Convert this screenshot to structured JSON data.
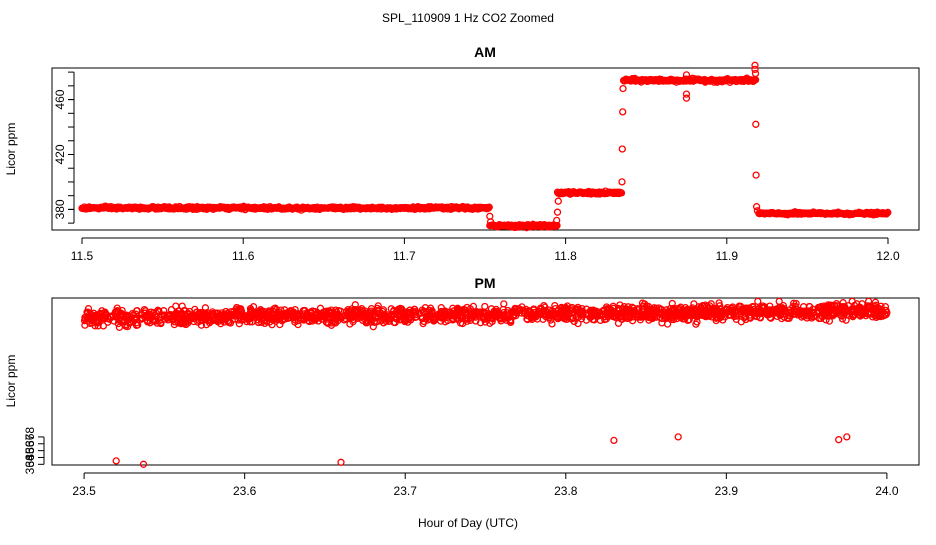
{
  "figure": {
    "title": "SPL_110909  1 Hz CO2 Zoomed",
    "shared_xlabel": "Hour of Day (UTC)"
  },
  "colors": {
    "points": "#ff0000",
    "axes": "#000000",
    "background": "#ffffff"
  },
  "chart_data": [
    {
      "type": "scatter",
      "title": "AM",
      "xlabel": "",
      "ylabel": "Licor ppm",
      "xlim": [
        11.5,
        12.0
      ],
      "ylim": [
        365,
        483
      ],
      "xticks": [
        11.5,
        11.6,
        11.7,
        11.8,
        11.9,
        12.0
      ],
      "xtick_labels": [
        "11.5",
        "11.6",
        "11.7",
        "11.8",
        "11.9",
        "12.0"
      ],
      "yticks": [
        380,
        420,
        460
      ],
      "ytick_labels": [
        "380",
        "420",
        "460"
      ],
      "segments": [
        {
          "x_start": 11.5,
          "x_end": 11.753,
          "level": 381,
          "noise": 0.8
        },
        {
          "x_start": 11.753,
          "x_end": 11.795,
          "level": 368,
          "noise": 0.8
        },
        {
          "x_start": 11.795,
          "x_end": 11.835,
          "level": 392,
          "noise": 0.8
        },
        {
          "x_start": 11.836,
          "x_end": 11.918,
          "level": 474,
          "noise": 0.9
        },
        {
          "x_start": 11.92,
          "x_end": 12.0,
          "level": 377,
          "noise": 0.7
        }
      ],
      "transition_points": [
        {
          "x": 11.753,
          "y": 375
        },
        {
          "x": 11.7535,
          "y": 371
        },
        {
          "x": 11.7945,
          "y": 372
        },
        {
          "x": 11.795,
          "y": 378
        },
        {
          "x": 11.7955,
          "y": 386
        },
        {
          "x": 11.835,
          "y": 400
        },
        {
          "x": 11.8352,
          "y": 424
        },
        {
          "x": 11.8354,
          "y": 451
        },
        {
          "x": 11.8356,
          "y": 468
        },
        {
          "x": 11.875,
          "y": 461
        },
        {
          "x": 11.875,
          "y": 464
        },
        {
          "x": 11.875,
          "y": 478
        },
        {
          "x": 11.9175,
          "y": 482
        },
        {
          "x": 11.9175,
          "y": 485
        },
        {
          "x": 11.9178,
          "y": 479
        },
        {
          "x": 11.918,
          "y": 442
        },
        {
          "x": 11.9182,
          "y": 405
        },
        {
          "x": 11.9185,
          "y": 382
        },
        {
          "x": 11.919,
          "y": 379
        }
      ]
    },
    {
      "type": "scatter",
      "title": "PM",
      "xlabel": "Hour of Day (UTC)",
      "ylabel": "Licor ppm",
      "xlim": [
        23.48,
        24.02
      ],
      "ylim": [
        363.9,
        388.3
      ],
      "xticks": [
        23.5,
        23.6,
        23.7,
        23.8,
        23.9,
        24.0
      ],
      "xtick_labels": [
        "23.5",
        "23.6",
        "23.7",
        "23.8",
        "23.9",
        "24.0"
      ],
      "yticks": [
        364,
        365,
        366,
        367,
        368
      ],
      "ytick_labels": [
        "364",
        "365",
        "366",
        "367",
        "368"
      ],
      "trend": {
        "x_start": 23.5,
        "x_end": 24.0,
        "y_start": 385.4,
        "y_end": 386.4,
        "noise_sd": 0.55
      },
      "n_points": 1800,
      "outlier_points": [
        {
          "x": 23.537,
          "y": 364.0
        },
        {
          "x": 23.66,
          "y": 364.3
        },
        {
          "x": 23.52,
          "y": 364.5
        },
        {
          "x": 23.87,
          "y": 368.0
        },
        {
          "x": 23.975,
          "y": 368.0
        },
        {
          "x": 23.97,
          "y": 367.6
        },
        {
          "x": 23.83,
          "y": 367.5
        }
      ]
    }
  ]
}
